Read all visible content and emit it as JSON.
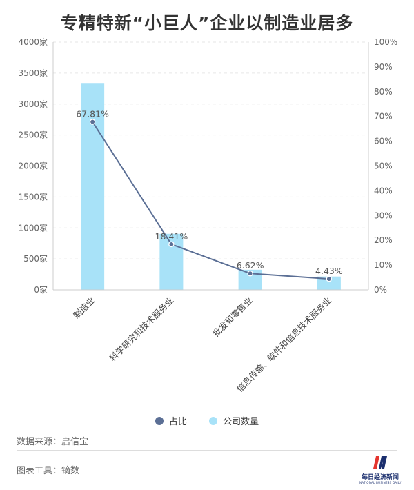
{
  "colors": {
    "bar": "#a8e2f8",
    "line": "#5b6f95",
    "grid": "#e6e6e6",
    "axis": "#cccccc",
    "logo_red": "#e4352f",
    "logo_blue": "#1b2f6e"
  },
  "legend": {
    "line_name": "占比",
    "bar_name": "公司数量"
  },
  "footer": {
    "source": "数据来源：启信宝",
    "tool": "图表工具：镝数",
    "logo_text": "每日经济新闻",
    "logo_sub": "NATIONAL BUSINESS DAILY"
  },
  "chart_data": {
    "type": "bar",
    "title": "专精特新“小巨人”企业以制造业居多",
    "categories": [
      "制造业",
      "科学研究和技术服务业",
      "批发和零售业",
      "信息传输、软件和信息技术服务业"
    ],
    "series": [
      {
        "name": "公司数量",
        "type": "bar",
        "axis": "left",
        "values": [
          3340,
          905,
          325,
          215
        ]
      },
      {
        "name": "占比",
        "type": "line",
        "axis": "right",
        "values": [
          67.81,
          18.41,
          6.62,
          4.43
        ],
        "labels": [
          "67.81%",
          "18.41%",
          "6.62%",
          "4.43%"
        ]
      }
    ],
    "y_left": {
      "min": 0,
      "max": 4000,
      "ticks": [
        0,
        500,
        1000,
        1500,
        2000,
        2500,
        3000,
        3500,
        4000
      ],
      "tick_labels": [
        "0家",
        "500家",
        "1000家",
        "1500家",
        "2000家",
        "2500家",
        "3000家",
        "3500家",
        "4000家"
      ]
    },
    "y_right": {
      "min": 0,
      "max": 100,
      "ticks": [
        0,
        10,
        20,
        30,
        40,
        50,
        60,
        70,
        80,
        90,
        100
      ],
      "tick_labels": [
        "0%",
        "10%",
        "20%",
        "30%",
        "40%",
        "50%",
        "60%",
        "70%",
        "80%",
        "90%",
        "100%"
      ]
    },
    "grid": true,
    "legend_position": "bottom"
  }
}
